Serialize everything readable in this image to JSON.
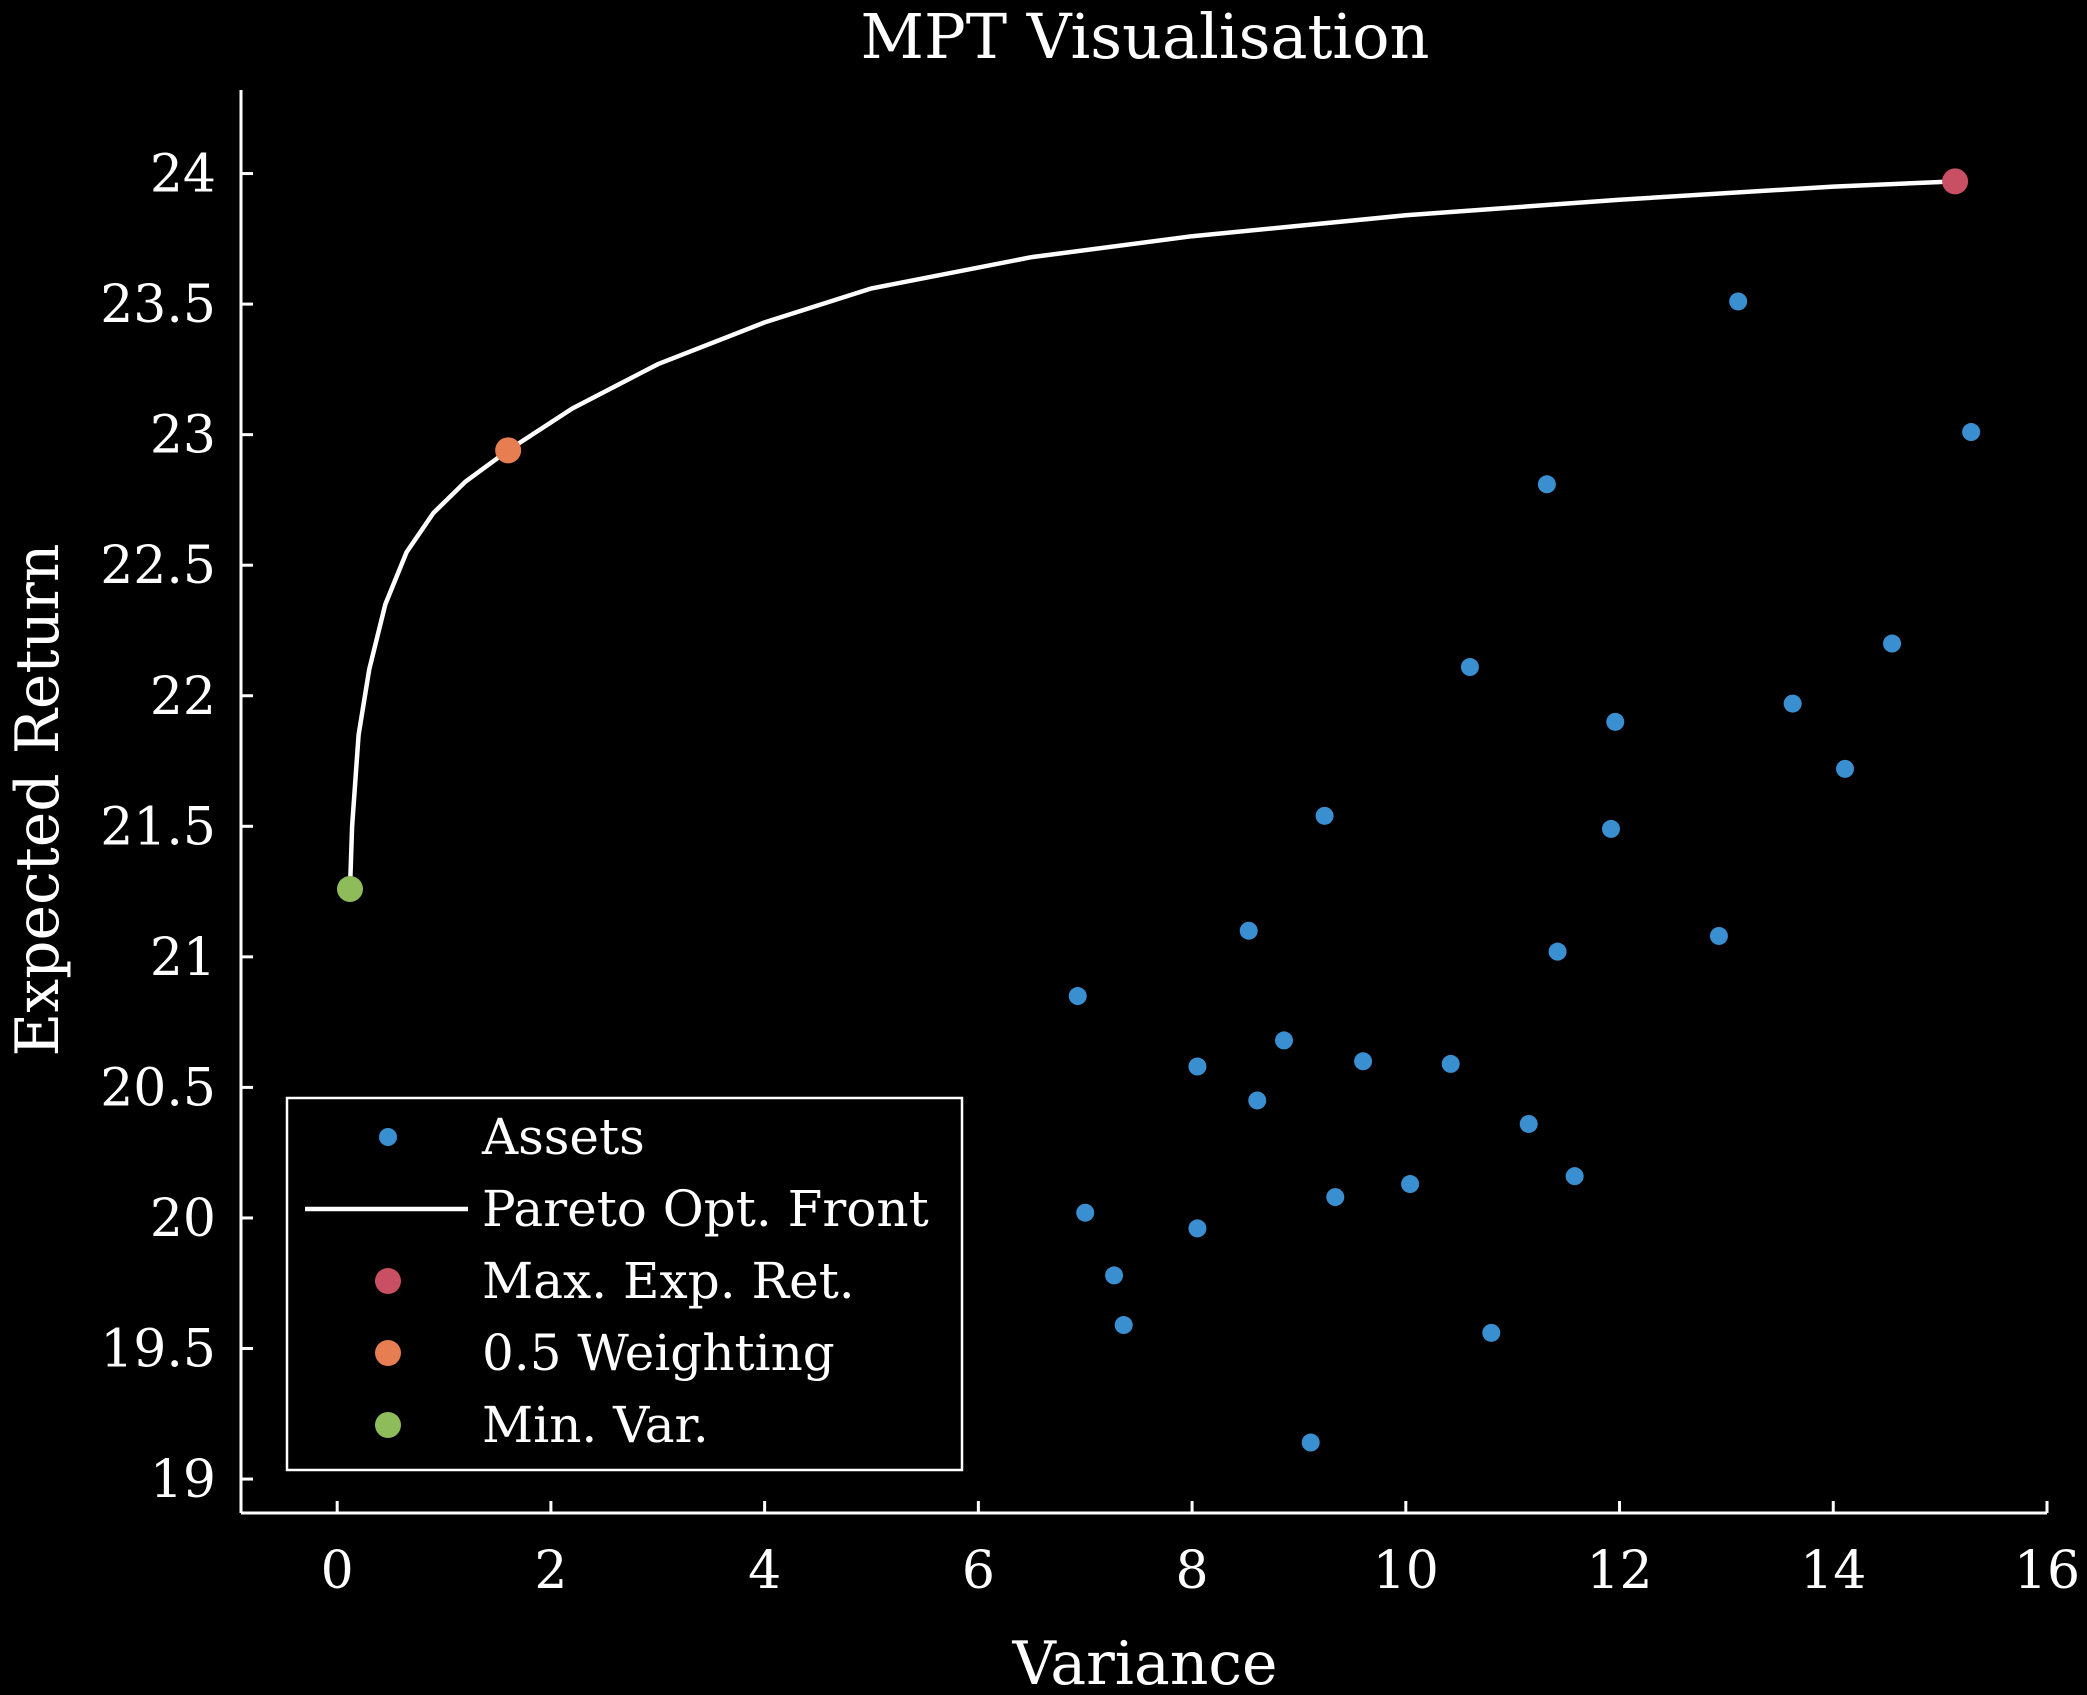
{
  "chart_data": {
    "type": "scatter",
    "title": "MPT Visualisation",
    "xlabel": "Variance",
    "ylabel": "Expected Return",
    "xlim": [
      -0.9,
      16
    ],
    "ylim": [
      18.87,
      24.32
    ],
    "xticks": [
      0,
      2,
      4,
      6,
      8,
      10,
      12,
      14,
      16
    ],
    "xtick_labels": [
      "0",
      "2",
      "4",
      "6",
      "8",
      "10",
      "12",
      "14",
      "16"
    ],
    "yticks": [
      19,
      19.5,
      20,
      20.5,
      21,
      21.5,
      22,
      22.5,
      23,
      23.5,
      24
    ],
    "ytick_labels": [
      "19",
      "19.5",
      "20",
      "20.5",
      "21",
      "21.5",
      "22",
      "22.5",
      "23",
      "23.5",
      "24"
    ],
    "grid": false,
    "legend_position": "lower-left",
    "series": [
      {
        "name": "Assets",
        "kind": "scatter",
        "color": "#3a8fd1",
        "points": [
          [
            6.93,
            20.85
          ],
          [
            7.0,
            20.02
          ],
          [
            7.27,
            19.78
          ],
          [
            7.36,
            19.59
          ],
          [
            8.05,
            20.58
          ],
          [
            8.05,
            19.96
          ],
          [
            8.53,
            21.1
          ],
          [
            8.61,
            20.45
          ],
          [
            8.86,
            20.68
          ],
          [
            9.11,
            19.14
          ],
          [
            9.24,
            21.54
          ],
          [
            9.34,
            20.08
          ],
          [
            9.6,
            20.6
          ],
          [
            10.04,
            20.13
          ],
          [
            10.42,
            20.59
          ],
          [
            10.6,
            22.11
          ],
          [
            10.8,
            19.56
          ],
          [
            11.15,
            20.36
          ],
          [
            11.32,
            22.81
          ],
          [
            11.42,
            21.02
          ],
          [
            11.58,
            20.16
          ],
          [
            11.92,
            21.49
          ],
          [
            11.96,
            21.9
          ],
          [
            12.93,
            21.08
          ],
          [
            13.11,
            23.51
          ],
          [
            13.62,
            21.97
          ],
          [
            14.11,
            21.72
          ],
          [
            14.55,
            22.2
          ],
          [
            15.29,
            23.01
          ]
        ]
      },
      {
        "name": "Pareto Opt. Front",
        "kind": "line",
        "color": "#ffffff",
        "points": [
          [
            0.12,
            21.26
          ],
          [
            0.14,
            21.5
          ],
          [
            0.2,
            21.85
          ],
          [
            0.3,
            22.1
          ],
          [
            0.45,
            22.35
          ],
          [
            0.65,
            22.55
          ],
          [
            0.9,
            22.7
          ],
          [
            1.2,
            22.82
          ],
          [
            1.6,
            22.94
          ],
          [
            2.2,
            23.1
          ],
          [
            3.0,
            23.27
          ],
          [
            4.0,
            23.43
          ],
          [
            5.0,
            23.56
          ],
          [
            6.5,
            23.68
          ],
          [
            8.0,
            23.76
          ],
          [
            10.0,
            23.84
          ],
          [
            12.0,
            23.9
          ],
          [
            14.0,
            23.95
          ],
          [
            15.14,
            23.97
          ]
        ]
      },
      {
        "name": "Max. Exp. Ret.",
        "kind": "marker",
        "color": "#c94f63",
        "points": [
          [
            15.14,
            23.97
          ]
        ]
      },
      {
        "name": "0.5 Weighting",
        "kind": "marker",
        "color": "#e67e52",
        "points": [
          [
            1.6,
            22.94
          ]
        ]
      },
      {
        "name": "Min. Var.",
        "kind": "marker",
        "color": "#8fbc5a",
        "points": [
          [
            0.12,
            21.26
          ]
        ]
      }
    ]
  }
}
